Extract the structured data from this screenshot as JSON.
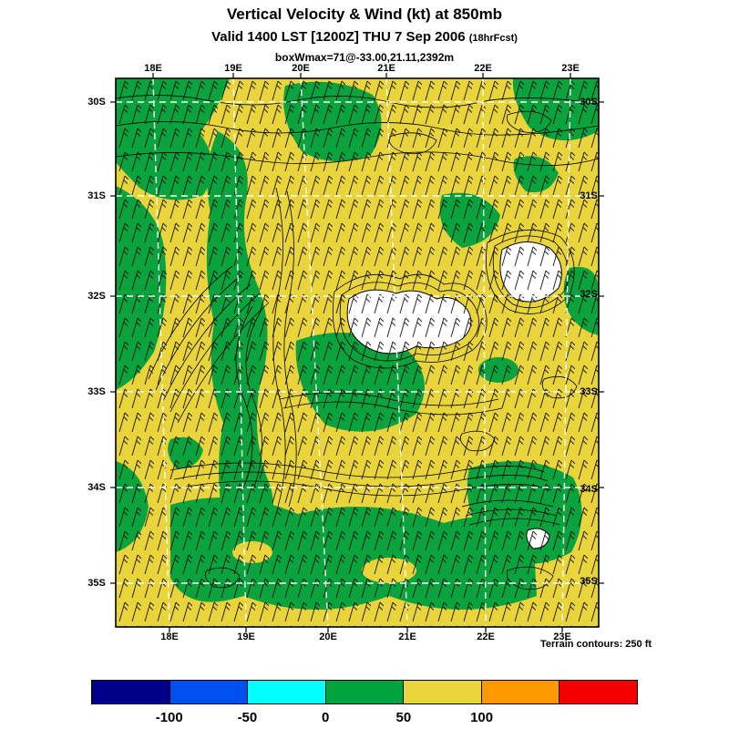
{
  "colors": {
    "pos": "#e9d53b",
    "neg": "#0ba33e",
    "ext": "#ffffff"
  },
  "header": {
    "title": "Vertical Velocity & Wind (kt) at 850mb",
    "valid_line": "Valid 1400 LST [1200Z] THU 7 Sep 2006",
    "fcst_note": "(18hrFcst)",
    "box_line": "boxWmax=71@-33.00,21.11,2392m"
  },
  "map": {
    "lon_labels_top": [
      "18E",
      "19E",
      "20E",
      "21E",
      "22E",
      "23E"
    ],
    "lon_labels_bottom": [
      "18E",
      "19E",
      "20E",
      "21E",
      "22E",
      "23E"
    ],
    "lat_labels_left": [
      "30S",
      "31S",
      "32S",
      "33S",
      "34S",
      "35S"
    ],
    "lat_labels_right": [
      "30S",
      "31S",
      "32S",
      "33S",
      "34S",
      "35S"
    ],
    "footnote": "Terrain contours: 250 ft"
  },
  "chart_data": {
    "type": "heatmap",
    "title": "Vertical Velocity & Wind (kt) at 850mb",
    "valid": "1400 LST [1200Z] THU 7 Sep 2006",
    "forecast_hour": "18hrFcst",
    "level": "850mb",
    "units": "kt",
    "wmax_annotation": "boxWmax=71@-33.00,21.11,2392m",
    "x_tick_labels": [
      "18E",
      "19E",
      "20E",
      "21E",
      "22E",
      "23E"
    ],
    "y_tick_labels": [
      "30S",
      "31S",
      "32S",
      "33S",
      "34S",
      "35S"
    ],
    "overlays": [
      "wind barbs",
      "terrain contours"
    ],
    "terrain_contour_interval": "250 ft",
    "field_colors": {
      "yellow": "#e9d53b",
      "green": "#0ba33e",
      "white": "#ffffff"
    },
    "colorbar": {
      "orientation": "horizontal",
      "tick_labels": [
        "-100",
        "-50",
        "0",
        "50",
        "100"
      ],
      "colors": [
        "#00008b",
        "#0050f0",
        "#00ffff",
        "#00a33e",
        "#e9d53b",
        "#ff9800",
        "#f40000"
      ]
    }
  }
}
